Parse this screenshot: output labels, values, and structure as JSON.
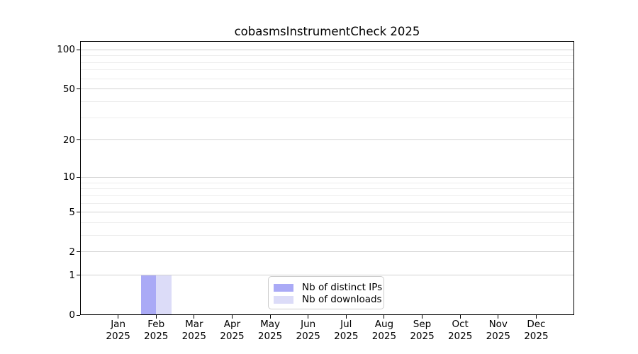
{
  "chart_data": {
    "type": "bar",
    "title": "cobasmsInstrumentCheck 2025",
    "categories": [
      "Jan",
      "Feb",
      "Mar",
      "Apr",
      "May",
      "Jun",
      "Jul",
      "Aug",
      "Sep",
      "Oct",
      "Nov",
      "Dec"
    ],
    "x_sublabel": "2025",
    "series": [
      {
        "name": "Nb of distinct IPs",
        "color": "#aaaaf6",
        "values": [
          0,
          1,
          0,
          0,
          0,
          0,
          0,
          0,
          0,
          0,
          0,
          0
        ]
      },
      {
        "name": "Nb of downloads",
        "color": "#dcdcf8",
        "values": [
          0,
          1,
          0,
          0,
          0,
          0,
          0,
          0,
          0,
          0,
          0,
          0
        ]
      }
    ],
    "y_scale": "log10(value+1)",
    "y_ticks_major": [
      0,
      1,
      2,
      5,
      10,
      20,
      50,
      100
    ],
    "y_ticks_minor": [
      3,
      4,
      6,
      7,
      8,
      9,
      30,
      40,
      60,
      70,
      80,
      90
    ],
    "ylim": [
      0,
      116.5
    ],
    "bar_width_fraction": 0.4,
    "grid": "horizontal",
    "legend_position": "lower center",
    "colors": {
      "grid_major": "#d2d2d2",
      "grid_minor": "#ededed",
      "spine": "#000000",
      "legend_border": "#cccccc",
      "background": "#ffffff"
    }
  }
}
